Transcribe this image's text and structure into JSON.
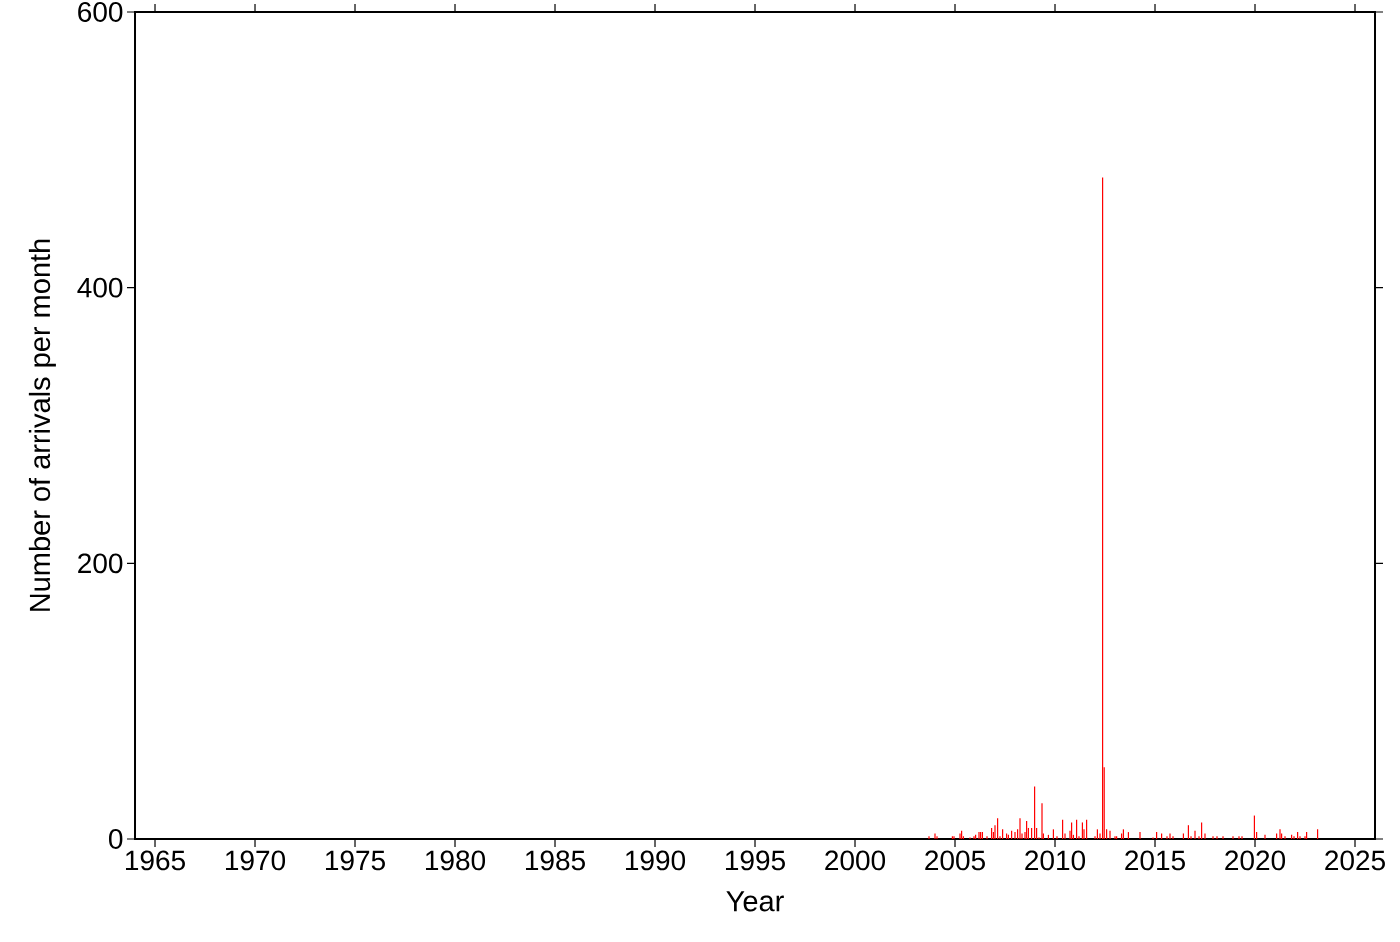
{
  "chart_data": {
    "type": "bar",
    "xlabel": "Year",
    "ylabel": "Number of arrivals per month",
    "color": "#ff0000",
    "x": [
      2003.7,
      2004.0,
      2004.1,
      2004.87,
      2004.95,
      2005.25,
      2005.33,
      2005.42,
      2005.75,
      2005.95,
      2006.03,
      2006.2,
      2006.28,
      2006.37,
      2006.6,
      2006.83,
      2006.92,
      2007.0,
      2007.13,
      2007.25,
      2007.38,
      2007.58,
      2007.67,
      2007.83,
      2008.0,
      2008.13,
      2008.25,
      2008.35,
      2008.5,
      2008.58,
      2008.67,
      2008.83,
      2008.98,
      2009.08,
      2009.2,
      2009.35,
      2009.42,
      2009.67,
      2009.92,
      2010.1,
      2010.38,
      2010.5,
      2010.75,
      2010.83,
      2010.92,
      2011.08,
      2011.2,
      2011.37,
      2011.45,
      2011.58,
      2012.0,
      2012.12,
      2012.25,
      2012.38,
      2012.46,
      2012.58,
      2012.75,
      2013.0,
      2013.08,
      2013.33,
      2013.42,
      2013.67,
      2014.25,
      2014.9,
      2015.08,
      2015.33,
      2015.6,
      2015.75,
      2015.9,
      2016.42,
      2016.67,
      2016.8,
      2017.0,
      2017.2,
      2017.33,
      2017.5,
      2017.9,
      2018.1,
      2018.4,
      2018.9,
      2019.2,
      2019.35,
      2019.97,
      2020.08,
      2020.5,
      2021.08,
      2021.25,
      2021.33,
      2021.5,
      2021.83,
      2021.95,
      2022.13,
      2022.25,
      2022.5,
      2022.58,
      2023.13
    ],
    "values": [
      2,
      4,
      2,
      2,
      2,
      4,
      6,
      2,
      1,
      2,
      3,
      5,
      5,
      5,
      2,
      8,
      5,
      10,
      15,
      2,
      7,
      4,
      3,
      6,
      5,
      7,
      15,
      4,
      5,
      13,
      8,
      8,
      38,
      8,
      1,
      26,
      4,
      3,
      7,
      2,
      14,
      4,
      6,
      12,
      3,
      14,
      2,
      12,
      7,
      14,
      2,
      7,
      4,
      480,
      52,
      7,
      6,
      2,
      2,
      4,
      7,
      5,
      5,
      1,
      5,
      4,
      2,
      4,
      2,
      4,
      10,
      2,
      6,
      2,
      12,
      4,
      2,
      2,
      2,
      2,
      2,
      2,
      17,
      5,
      3,
      4,
      7,
      4,
      2,
      3,
      2,
      5,
      2,
      2,
      5,
      7
    ],
    "xlim": [
      1964,
      2026
    ],
    "xticks": [
      1965,
      1970,
      1975,
      1980,
      1985,
      1990,
      1995,
      2000,
      2005,
      2010,
      2015,
      2020,
      2025
    ],
    "ylim": [
      0,
      600
    ],
    "yticks": [
      0,
      200,
      400,
      600
    ]
  }
}
